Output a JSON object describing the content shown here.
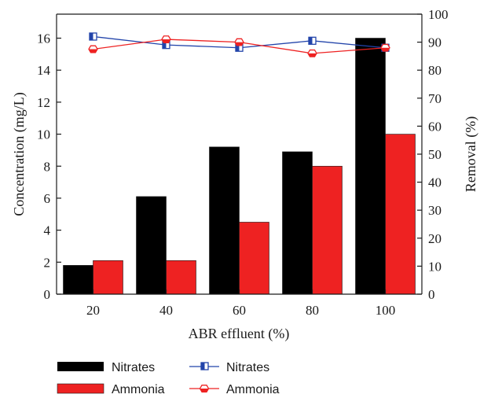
{
  "chart_data": {
    "type": "bar",
    "xlabel": "ABR effluent (%)",
    "ylabel": "Concentration (mg/L)",
    "y2label": "Removal (%)",
    "categories": [
      "20",
      "40",
      "60",
      "80",
      "100"
    ],
    "ylim": [
      0,
      17.5
    ],
    "yticks": [
      "0",
      "2",
      "4",
      "6",
      "8",
      "10",
      "12",
      "14",
      "16"
    ],
    "y2lim": [
      0,
      100
    ],
    "y2ticks": [
      "0",
      "10",
      "20",
      "30",
      "40",
      "50",
      "60",
      "70",
      "80",
      "90",
      "100"
    ],
    "bar_series": [
      {
        "name": "Nitrates",
        "color": "#000000",
        "values": [
          1.8,
          6.1,
          9.2,
          8.9,
          16.0
        ]
      },
      {
        "name": "Ammonia",
        "color": "#ee2222",
        "values": [
          2.1,
          2.1,
          4.5,
          8.0,
          10.0
        ]
      }
    ],
    "line_series": [
      {
        "name": "Nitrates",
        "color": "#2244aa",
        "marker": "half-filled-square",
        "axis": "right",
        "values": [
          92.0,
          89.0,
          88.0,
          90.5,
          88.0
        ]
      },
      {
        "name": "Ammonia",
        "color": "#ee2222",
        "marker": "half-filled-hexagon",
        "axis": "right",
        "values": [
          87.5,
          91.0,
          90.0,
          86.0,
          88.0
        ]
      }
    ],
    "legend_position": "bottom"
  }
}
